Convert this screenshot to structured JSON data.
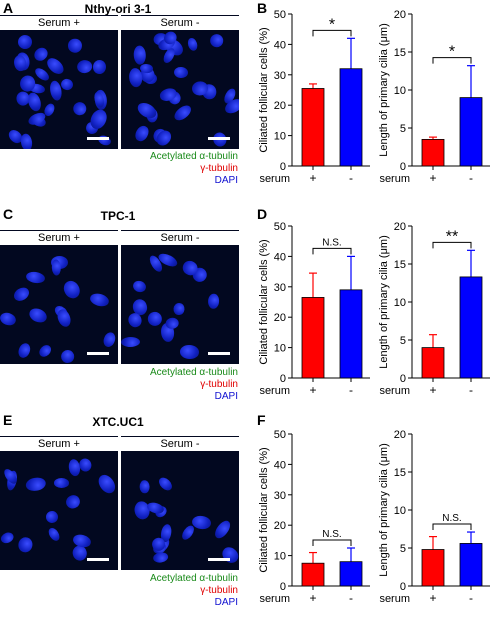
{
  "rows": [
    {
      "letter_left": "A",
      "letter_right": "B",
      "cell_line": "Nthy-ori 3-1",
      "serum_plus": "Serum +",
      "serum_minus": "Serum -",
      "legend": [
        "Acetylated α-tubulin",
        "γ-tubulin",
        "DAPI"
      ]
    },
    {
      "letter_left": "C",
      "letter_right": "D",
      "cell_line": "TPC-1",
      "serum_plus": "Serum +",
      "serum_minus": "Serum -",
      "legend": [
        "Acetylated α-tubulin",
        "γ-tubulin",
        "DAPI"
      ]
    },
    {
      "letter_left": "E",
      "letter_right": "F",
      "cell_line": "XTC.UC1",
      "serum_plus": "Serum +",
      "serum_minus": "Serum -",
      "legend": [
        "Acetylated α-tubulin",
        "γ-tubulin",
        "DAPI"
      ]
    }
  ],
  "colors": {
    "serum_plus": "#ff0000",
    "serum_minus": "#0000ff",
    "green": "#1a8a1a",
    "red": "#e00000",
    "blue": "#1010d0"
  },
  "chart_data": [
    {
      "type": "bar",
      "panel": "B",
      "ylabel": "Ciliated follicular cells (%)",
      "xlabel": "serum",
      "categories": [
        "+",
        "-"
      ],
      "values": [
        25.5,
        32
      ],
      "errors": [
        1.5,
        10
      ],
      "ylim": [
        0,
        50
      ],
      "yticks": [
        0,
        10,
        20,
        30,
        40,
        50
      ],
      "significance": "*"
    },
    {
      "type": "bar",
      "panel": "B",
      "ylabel": "Length of primary cilia (μm)",
      "xlabel": "serum",
      "categories": [
        "+",
        "-"
      ],
      "values": [
        3.5,
        9
      ],
      "errors": [
        0.3,
        4.2
      ],
      "ylim": [
        0,
        20
      ],
      "yticks": [
        0,
        5,
        10,
        15,
        20
      ],
      "significance": "*"
    },
    {
      "type": "bar",
      "panel": "D",
      "ylabel": "Ciliated follicular cells (%)",
      "xlabel": "serum",
      "categories": [
        "+",
        "-"
      ],
      "values": [
        26.5,
        29
      ],
      "errors": [
        8,
        11
      ],
      "ylim": [
        0,
        50
      ],
      "yticks": [
        0,
        10,
        20,
        30,
        40,
        50
      ],
      "significance": "N.S."
    },
    {
      "type": "bar",
      "panel": "D",
      "ylabel": "Length of primary cilia (μm)",
      "xlabel": "serum",
      "categories": [
        "+",
        "-"
      ],
      "values": [
        4,
        13.3
      ],
      "errors": [
        1.7,
        3.5
      ],
      "ylim": [
        0,
        20
      ],
      "yticks": [
        0,
        5,
        10,
        15,
        20
      ],
      "significance": "**"
    },
    {
      "type": "bar",
      "panel": "F",
      "ylabel": "Ciliated follicular cells (%)",
      "xlabel": "serum",
      "categories": [
        "+",
        "-"
      ],
      "values": [
        7.5,
        8
      ],
      "errors": [
        3.5,
        4.5
      ],
      "ylim": [
        0,
        50
      ],
      "yticks": [
        0,
        10,
        20,
        30,
        40,
        50
      ],
      "significance": "N.S."
    },
    {
      "type": "bar",
      "panel": "F",
      "ylabel": "Length of primary cilia (μm)",
      "xlabel": "serum",
      "categories": [
        "+",
        "-"
      ],
      "values": [
        4.8,
        5.6
      ],
      "errors": [
        1.7,
        1.5
      ],
      "ylim": [
        0,
        20
      ],
      "yticks": [
        0,
        5,
        10,
        15,
        20
      ],
      "significance": "N.S."
    }
  ]
}
